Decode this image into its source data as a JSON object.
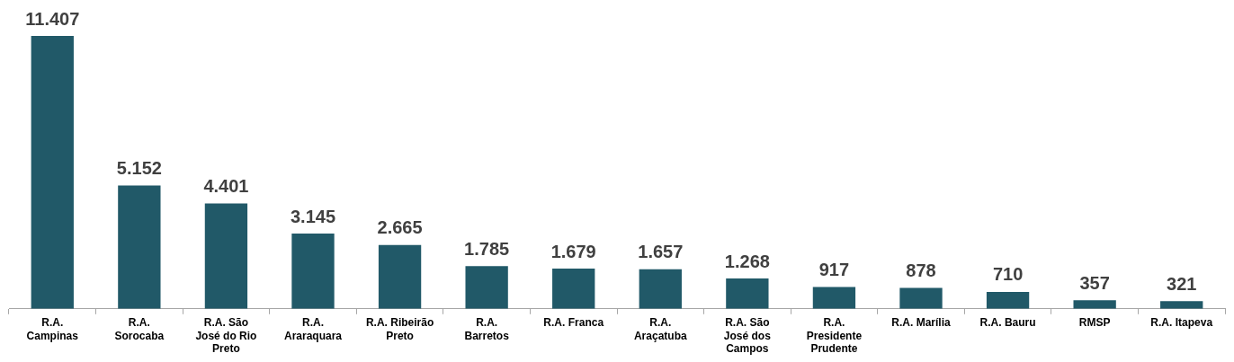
{
  "chart_data": {
    "type": "bar",
    "categories": [
      "R.A. Campinas",
      "R.A. Sorocaba",
      "R.A. São José do Rio Preto",
      "R.A. Araraquara",
      "R.A. Ribeirão Preto",
      "R.A. Barretos",
      "R.A. Franca",
      "R.A. Araçatuba",
      "R.A. São José dos Campos",
      "R.A. Presidente Prudente",
      "R.A. Marília",
      "R.A. Bauru",
      "RMSP",
      "R.A. Itapeva"
    ],
    "values": [
      11407,
      5152,
      4401,
      3145,
      2665,
      1785,
      1679,
      1657,
      1268,
      917,
      878,
      710,
      357,
      321
    ],
    "value_labels": [
      "11.407",
      "5.152",
      "4.401",
      "3.145",
      "2.665",
      "1.785",
      "1.679",
      "1.657",
      "1.268",
      "917",
      "878",
      "710",
      "357",
      "321"
    ],
    "color": "#215968",
    "legend": false,
    "grid": false
  }
}
